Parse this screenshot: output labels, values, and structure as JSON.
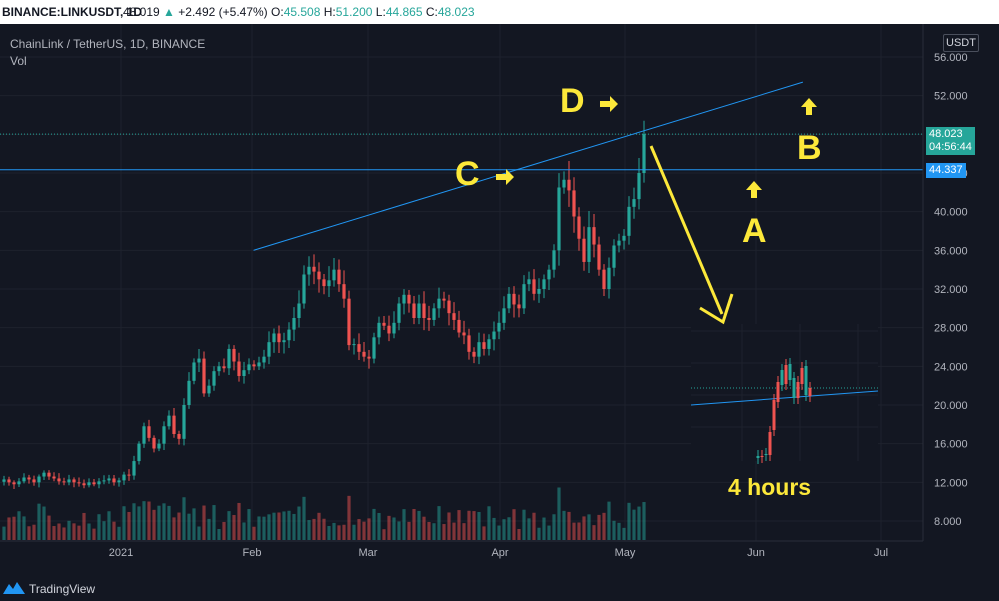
{
  "header": {
    "symbol": "BINANCE:LINKUSDT, 1D",
    "last": "48.019",
    "change": "+2.492 (+5.47%)",
    "o_label": "O:",
    "o_value": "45.508",
    "h_label": "H:",
    "h_value": "51.200",
    "l_label": "L:",
    "l_value": "44.865",
    "c_label": "C:",
    "c_value": "48.023"
  },
  "legend": {
    "title": "ChainLink / TetherUS, 1D, BINANCE",
    "vol": "Vol"
  },
  "currency": "USDT",
  "price_tags": {
    "last_price": "48.023",
    "countdown": "04:56:44",
    "level": "44.337"
  },
  "annotations": {
    "a": "A",
    "b": "B",
    "c": "C",
    "d": "D",
    "timeframe": "4 hours"
  },
  "footer": {
    "brand": "TradingView"
  },
  "colors": {
    "up": "#26a69a",
    "down": "#ef5350",
    "background": "#131722",
    "trendline": "#2196f3",
    "annotation": "#fce83a"
  },
  "chart_data": {
    "type": "candlestick",
    "y_axis": {
      "ticks": [
        "56.000",
        "52.000",
        "48.000",
        "44.000",
        "40.000",
        "36.000",
        "32.000",
        "28.000",
        "24.000",
        "20.000",
        "16.000",
        "12.000",
        "8.000"
      ],
      "range": [
        6,
        58
      ]
    },
    "x_axis": {
      "labels": [
        "2021",
        "Feb",
        "Mar",
        "Apr",
        "May",
        "Jun",
        "Jul"
      ]
    },
    "horizontal_level": 44.337,
    "last_price": 48.023,
    "trendline": {
      "from": {
        "date": "Feb 15",
        "price": 36.0
      },
      "to": {
        "date": "Jun 21",
        "price": 53.4
      }
    },
    "close_path": [
      [
        0,
        12.3
      ],
      [
        5,
        12.0
      ],
      [
        10,
        11.8
      ],
      [
        15,
        12.1
      ],
      [
        20,
        12.5
      ],
      [
        25,
        12.3
      ],
      [
        30,
        12.0
      ],
      [
        35,
        12.6
      ],
      [
        40,
        13.0
      ],
      [
        45,
        12.6
      ],
      [
        50,
        12.4
      ],
      [
        55,
        12.1
      ],
      [
        60,
        12.0
      ],
      [
        65,
        12.3
      ],
      [
        70,
        12.0
      ],
      [
        75,
        11.9
      ],
      [
        80,
        11.7
      ],
      [
        85,
        12.0
      ],
      [
        90,
        11.8
      ],
      [
        95,
        12.1
      ],
      [
        100,
        12.2
      ],
      [
        105,
        12.4
      ],
      [
        110,
        12.0
      ],
      [
        115,
        12.2
      ],
      [
        120,
        12.8
      ],
      [
        125,
        12.7
      ],
      [
        130,
        14.2
      ],
      [
        135,
        16.0
      ],
      [
        140,
        17.8
      ],
      [
        145,
        16.6
      ],
      [
        150,
        15.5
      ],
      [
        155,
        16.0
      ],
      [
        160,
        17.8
      ],
      [
        165,
        18.9
      ],
      [
        170,
        17.0
      ],
      [
        175,
        16.5
      ],
      [
        180,
        20.0
      ],
      [
        185,
        22.5
      ],
      [
        190,
        24.4
      ],
      [
        195,
        24.8
      ],
      [
        200,
        21.2
      ],
      [
        205,
        22.0
      ],
      [
        210,
        23.5
      ],
      [
        215,
        24.0
      ],
      [
        220,
        23.8
      ],
      [
        225,
        25.8
      ],
      [
        230,
        24.5
      ],
      [
        235,
        23.0
      ],
      [
        240,
        23.6
      ],
      [
        245,
        24.2
      ],
      [
        250,
        24.0
      ],
      [
        255,
        24.4
      ],
      [
        260,
        25.0
      ],
      [
        265,
        26.5
      ],
      [
        270,
        27.4
      ],
      [
        275,
        26.5
      ],
      [
        280,
        26.7
      ],
      [
        285,
        27.8
      ],
      [
        290,
        29.0
      ],
      [
        295,
        30.5
      ],
      [
        300,
        33.5
      ],
      [
        305,
        34.3
      ],
      [
        310,
        33.8
      ],
      [
        315,
        33.0
      ],
      [
        320,
        32.3
      ],
      [
        325,
        32.9
      ],
      [
        330,
        34.0
      ],
      [
        335,
        32.5
      ],
      [
        340,
        31.0
      ],
      [
        345,
        26.2
      ],
      [
        350,
        26.3
      ],
      [
        355,
        25.5
      ],
      [
        360,
        25.0
      ],
      [
        365,
        24.8
      ],
      [
        370,
        27.0
      ],
      [
        375,
        28.5
      ],
      [
        380,
        28.2
      ],
      [
        385,
        27.4
      ],
      [
        390,
        28.5
      ],
      [
        395,
        30.5
      ],
      [
        400,
        31.4
      ],
      [
        405,
        30.5
      ],
      [
        410,
        29.0
      ],
      [
        415,
        30.5
      ],
      [
        420,
        29.0
      ],
      [
        425,
        28.8
      ],
      [
        430,
        30.0
      ],
      [
        435,
        31.0
      ],
      [
        440,
        30.8
      ],
      [
        445,
        29.5
      ],
      [
        450,
        28.8
      ],
      [
        455,
        27.5
      ],
      [
        460,
        27.2
      ],
      [
        465,
        25.5
      ],
      [
        470,
        25.0
      ],
      [
        475,
        26.5
      ],
      [
        480,
        25.8
      ],
      [
        485,
        26.8
      ],
      [
        490,
        27.6
      ],
      [
        495,
        28.5
      ],
      [
        500,
        30.0
      ],
      [
        505,
        31.5
      ],
      [
        510,
        30.4
      ],
      [
        515,
        30.0
      ],
      [
        520,
        32.5
      ],
      [
        525,
        33.0
      ],
      [
        530,
        31.5
      ],
      [
        535,
        32.0
      ],
      [
        540,
        33.0
      ],
      [
        545,
        34.0
      ],
      [
        550,
        36.0
      ],
      [
        555,
        42.5
      ],
      [
        560,
        43.3
      ],
      [
        565,
        42.2
      ],
      [
        570,
        39.5
      ],
      [
        575,
        37.2
      ],
      [
        580,
        34.8
      ],
      [
        585,
        38.4
      ],
      [
        590,
        36.6
      ],
      [
        595,
        34.0
      ],
      [
        600,
        32.0
      ],
      [
        605,
        34.2
      ],
      [
        610,
        36.5
      ],
      [
        615,
        37.0
      ],
      [
        620,
        37.5
      ],
      [
        625,
        40.5
      ],
      [
        630,
        41.3
      ],
      [
        635,
        44.0
      ],
      [
        640,
        48.02
      ]
    ],
    "inset": {
      "label": "4 hours"
    }
  }
}
